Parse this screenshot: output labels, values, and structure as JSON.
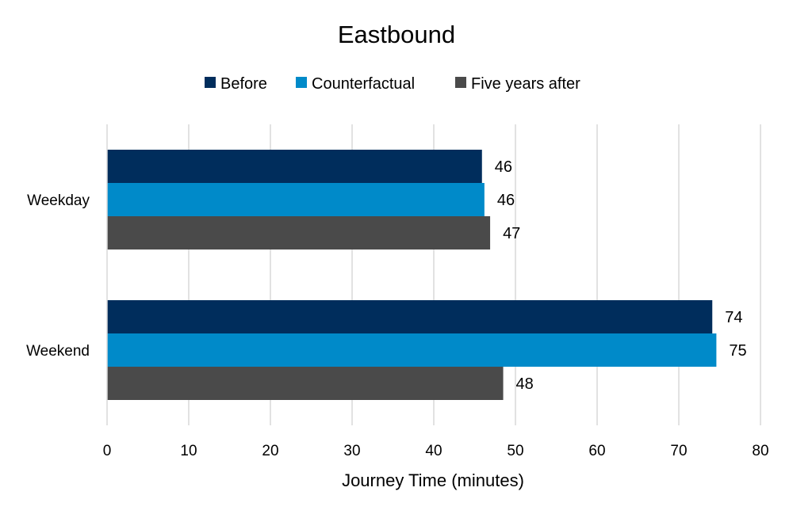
{
  "chart_data": {
    "type": "bar",
    "orientation": "horizontal",
    "title": "Eastbound",
    "xlabel": "Journey Time (minutes)",
    "ylabel": "",
    "categories": [
      "Weekday",
      "Weekend"
    ],
    "series": [
      {
        "name": "Before",
        "color": "#002d5c",
        "values": [
          46,
          74
        ],
        "value_labels": [
          "46",
          "74"
        ],
        "raw_values": [
          45.9,
          74.1
        ]
      },
      {
        "name": "Counterfactual",
        "color": "#008ac9",
        "values": [
          46,
          75
        ],
        "value_labels": [
          "46",
          "75"
        ],
        "raw_values": [
          46.2,
          74.6
        ]
      },
      {
        "name": "Five years after",
        "color": "#4a4a4a",
        "values": [
          47,
          48
        ],
        "value_labels": [
          "47",
          "48"
        ],
        "raw_values": [
          46.9,
          48.5
        ]
      }
    ],
    "xlim": [
      0,
      80
    ],
    "xticks": [
      "0",
      "10",
      "20",
      "30",
      "40",
      "50",
      "60",
      "70",
      "80"
    ],
    "grid": "vertical",
    "legend_position": "top"
  }
}
